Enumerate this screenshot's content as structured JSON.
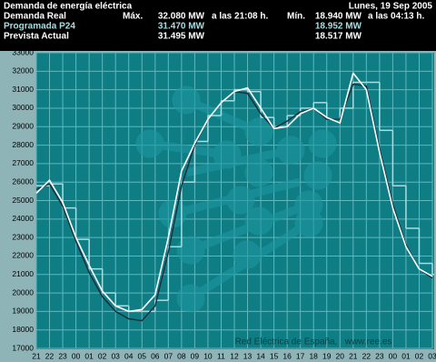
{
  "chart_data": {
    "type": "line",
    "title": "Demanda de energía eléctrica",
    "date": "Lunes, 19 Sep 2005",
    "stats": {
      "max_label": "Máx.",
      "min_label": "Mín.",
      "max_time": "a las 21:08 h.",
      "min_time": "a las 04:13 h.",
      "rows": [
        {
          "name": "Demanda Real",
          "max": "32.080 MW",
          "min": "18.940 MW"
        },
        {
          "name": "Programada P24",
          "max": "31.470 MW",
          "min": "18.952 MW"
        },
        {
          "name": "Prevista Actual",
          "max": "31.495 MW",
          "min": "18.517 MW"
        }
      ]
    },
    "footer": "Red Eléctrica de España.   www.ree.es",
    "categories": [
      "21",
      "22",
      "23",
      "00",
      "01",
      "02",
      "03",
      "04",
      "05",
      "06",
      "07",
      "08",
      "09",
      "10",
      "11",
      "12",
      "13",
      "14",
      "15",
      "16",
      "17",
      "18",
      "19",
      "20",
      "21",
      "22",
      "23",
      "00",
      "01",
      "02",
      "03"
    ],
    "series": [
      {
        "name": "Programada P24",
        "color": "#a6dfe2",
        "style": "step",
        "values": [
          25800,
          25900,
          24600,
          22900,
          21300,
          20000,
          19300,
          19000,
          19000,
          19600,
          22500,
          26000,
          28200,
          29600,
          30400,
          31000,
          30900,
          29500,
          29000,
          29600,
          30000,
          30300,
          29400,
          30000,
          31400,
          31400,
          28800,
          25800,
          23500,
          21600,
          21000
        ]
      },
      {
        "name": "Prevista Actual",
        "color": "#1c2c3c",
        "style": "line",
        "values": [
          25600,
          25900,
          24700,
          22800,
          21100,
          19800,
          19000,
          18600,
          18500,
          19300,
          22200,
          25800,
          28000,
          29400,
          30300,
          30900,
          30800,
          29700,
          28900,
          29300,
          29800,
          30000,
          29400,
          29400,
          31300,
          31200,
          27800,
          24800,
          22600,
          21300,
          20800
        ]
      },
      {
        "name": "Demanda Real",
        "color": "#ffffff",
        "style": "line",
        "values": [
          25400,
          26100,
          24900,
          23000,
          21500,
          20100,
          19300,
          19000,
          19100,
          19900,
          23000,
          26600,
          28100,
          29400,
          30300,
          30900,
          31100,
          30000,
          28900,
          29000,
          29700,
          30000,
          29500,
          29200,
          31900,
          31000,
          27600,
          24600,
          22500,
          21300,
          20900
        ]
      }
    ],
    "ylim": [
      17000,
      33000
    ],
    "yticks": [
      17000,
      18000,
      19000,
      20000,
      21000,
      22000,
      23000,
      24000,
      25000,
      26000,
      27000,
      28000,
      29000,
      30000,
      31000,
      32000,
      33000
    ],
    "grid": true
  }
}
